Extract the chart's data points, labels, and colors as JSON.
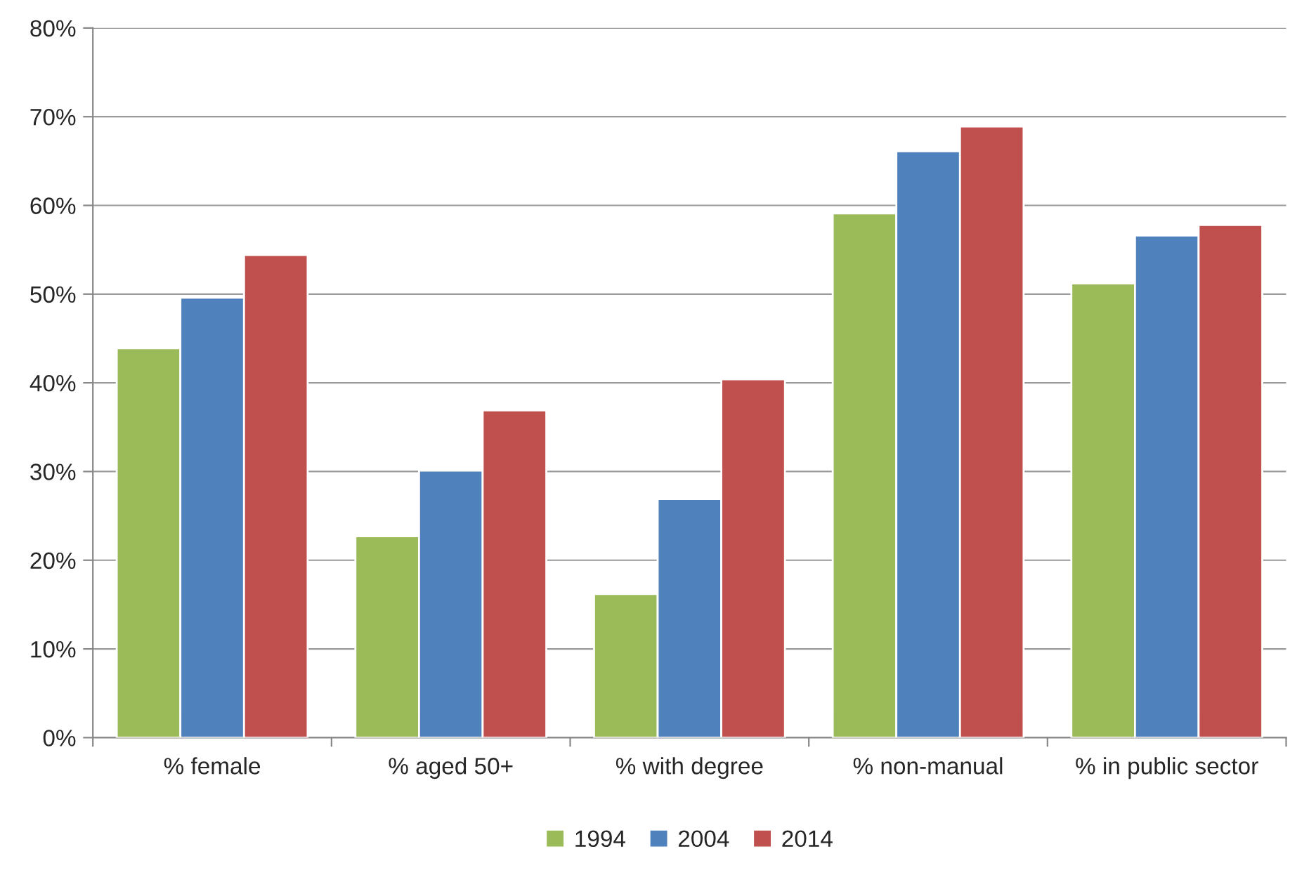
{
  "chart_data": {
    "type": "bar",
    "categories": [
      "% female",
      "% aged 50+",
      "% with degree",
      "% non-manual",
      "% in public sector"
    ],
    "series": [
      {
        "name": "1994",
        "color": "#9bbb59",
        "values": [
          43.9,
          22.7,
          16.2,
          59.1,
          51.2
        ]
      },
      {
        "name": "2004",
        "color": "#4f81bd",
        "values": [
          49.6,
          30.1,
          26.9,
          66.1,
          56.6
        ]
      },
      {
        "name": "2014",
        "color": "#c0504d",
        "values": [
          54.4,
          36.9,
          40.4,
          68.9,
          57.8
        ]
      }
    ],
    "ylim": [
      0,
      80
    ],
    "yticks": [
      {
        "value": 0,
        "label": "0%"
      },
      {
        "value": 10,
        "label": "10%"
      },
      {
        "value": 20,
        "label": "20%"
      },
      {
        "value": 30,
        "label": "30%"
      },
      {
        "value": 40,
        "label": "40%"
      },
      {
        "value": 50,
        "label": "50%"
      },
      {
        "value": 60,
        "label": "60%"
      },
      {
        "value": 70,
        "label": "70%"
      },
      {
        "value": 80,
        "label": "80%"
      }
    ],
    "grid": "y",
    "legend": "bottom"
  }
}
